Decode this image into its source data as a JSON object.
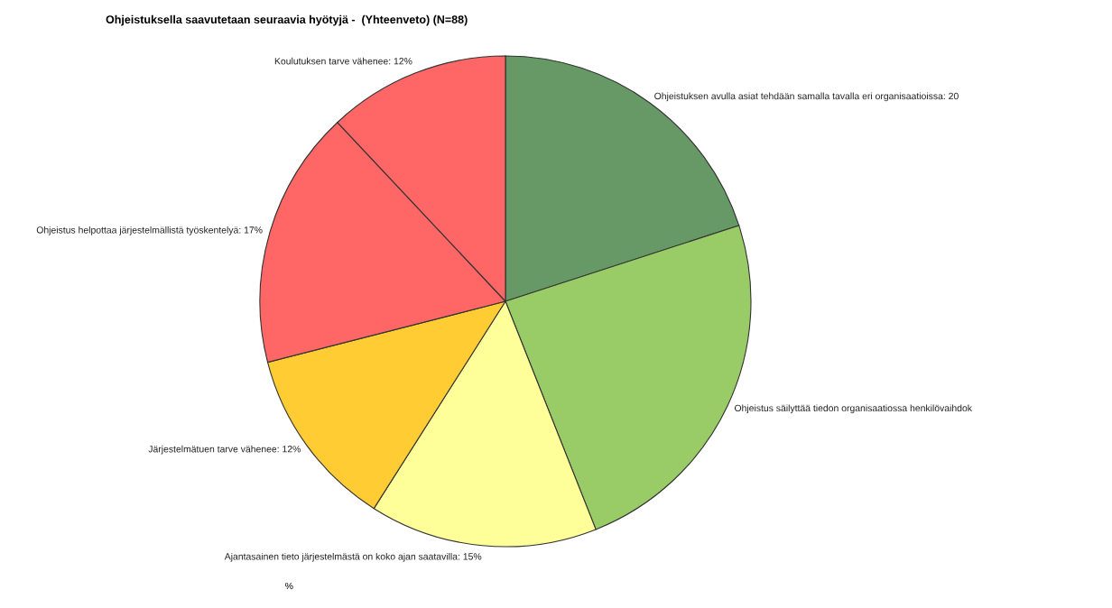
{
  "chart_data": {
    "type": "pie",
    "title": "Ohjeistuksella saavutetaan seuraavia hyötyjä -  (Yhteenveto) (N=88)",
    "categories": [
      "Ohjeistuksen avulla asiat tehdään samalla tavalla eri organisaatioissa: 20",
      "Ohjeistus säilyttää tiedon organisaatiossa henkilövaihdok",
      "Ajantasainen tieto järjestelmästä on koko ajan saatavilla: 15%",
      "Järjestelmätuen tarve vähenee: 12%",
      "Ohjeistus helpottaa järjestelmällistä työskentelyä: 17%",
      "Koulutuksen tarve vähenee: 12%"
    ],
    "values": [
      20,
      24,
      15,
      12,
      17,
      12
    ],
    "colors": [
      "#669966",
      "#99cc66",
      "#ffff99",
      "#ffcc33",
      "#ff6666",
      "#ff6666"
    ],
    "annotations": [
      "%"
    ]
  }
}
